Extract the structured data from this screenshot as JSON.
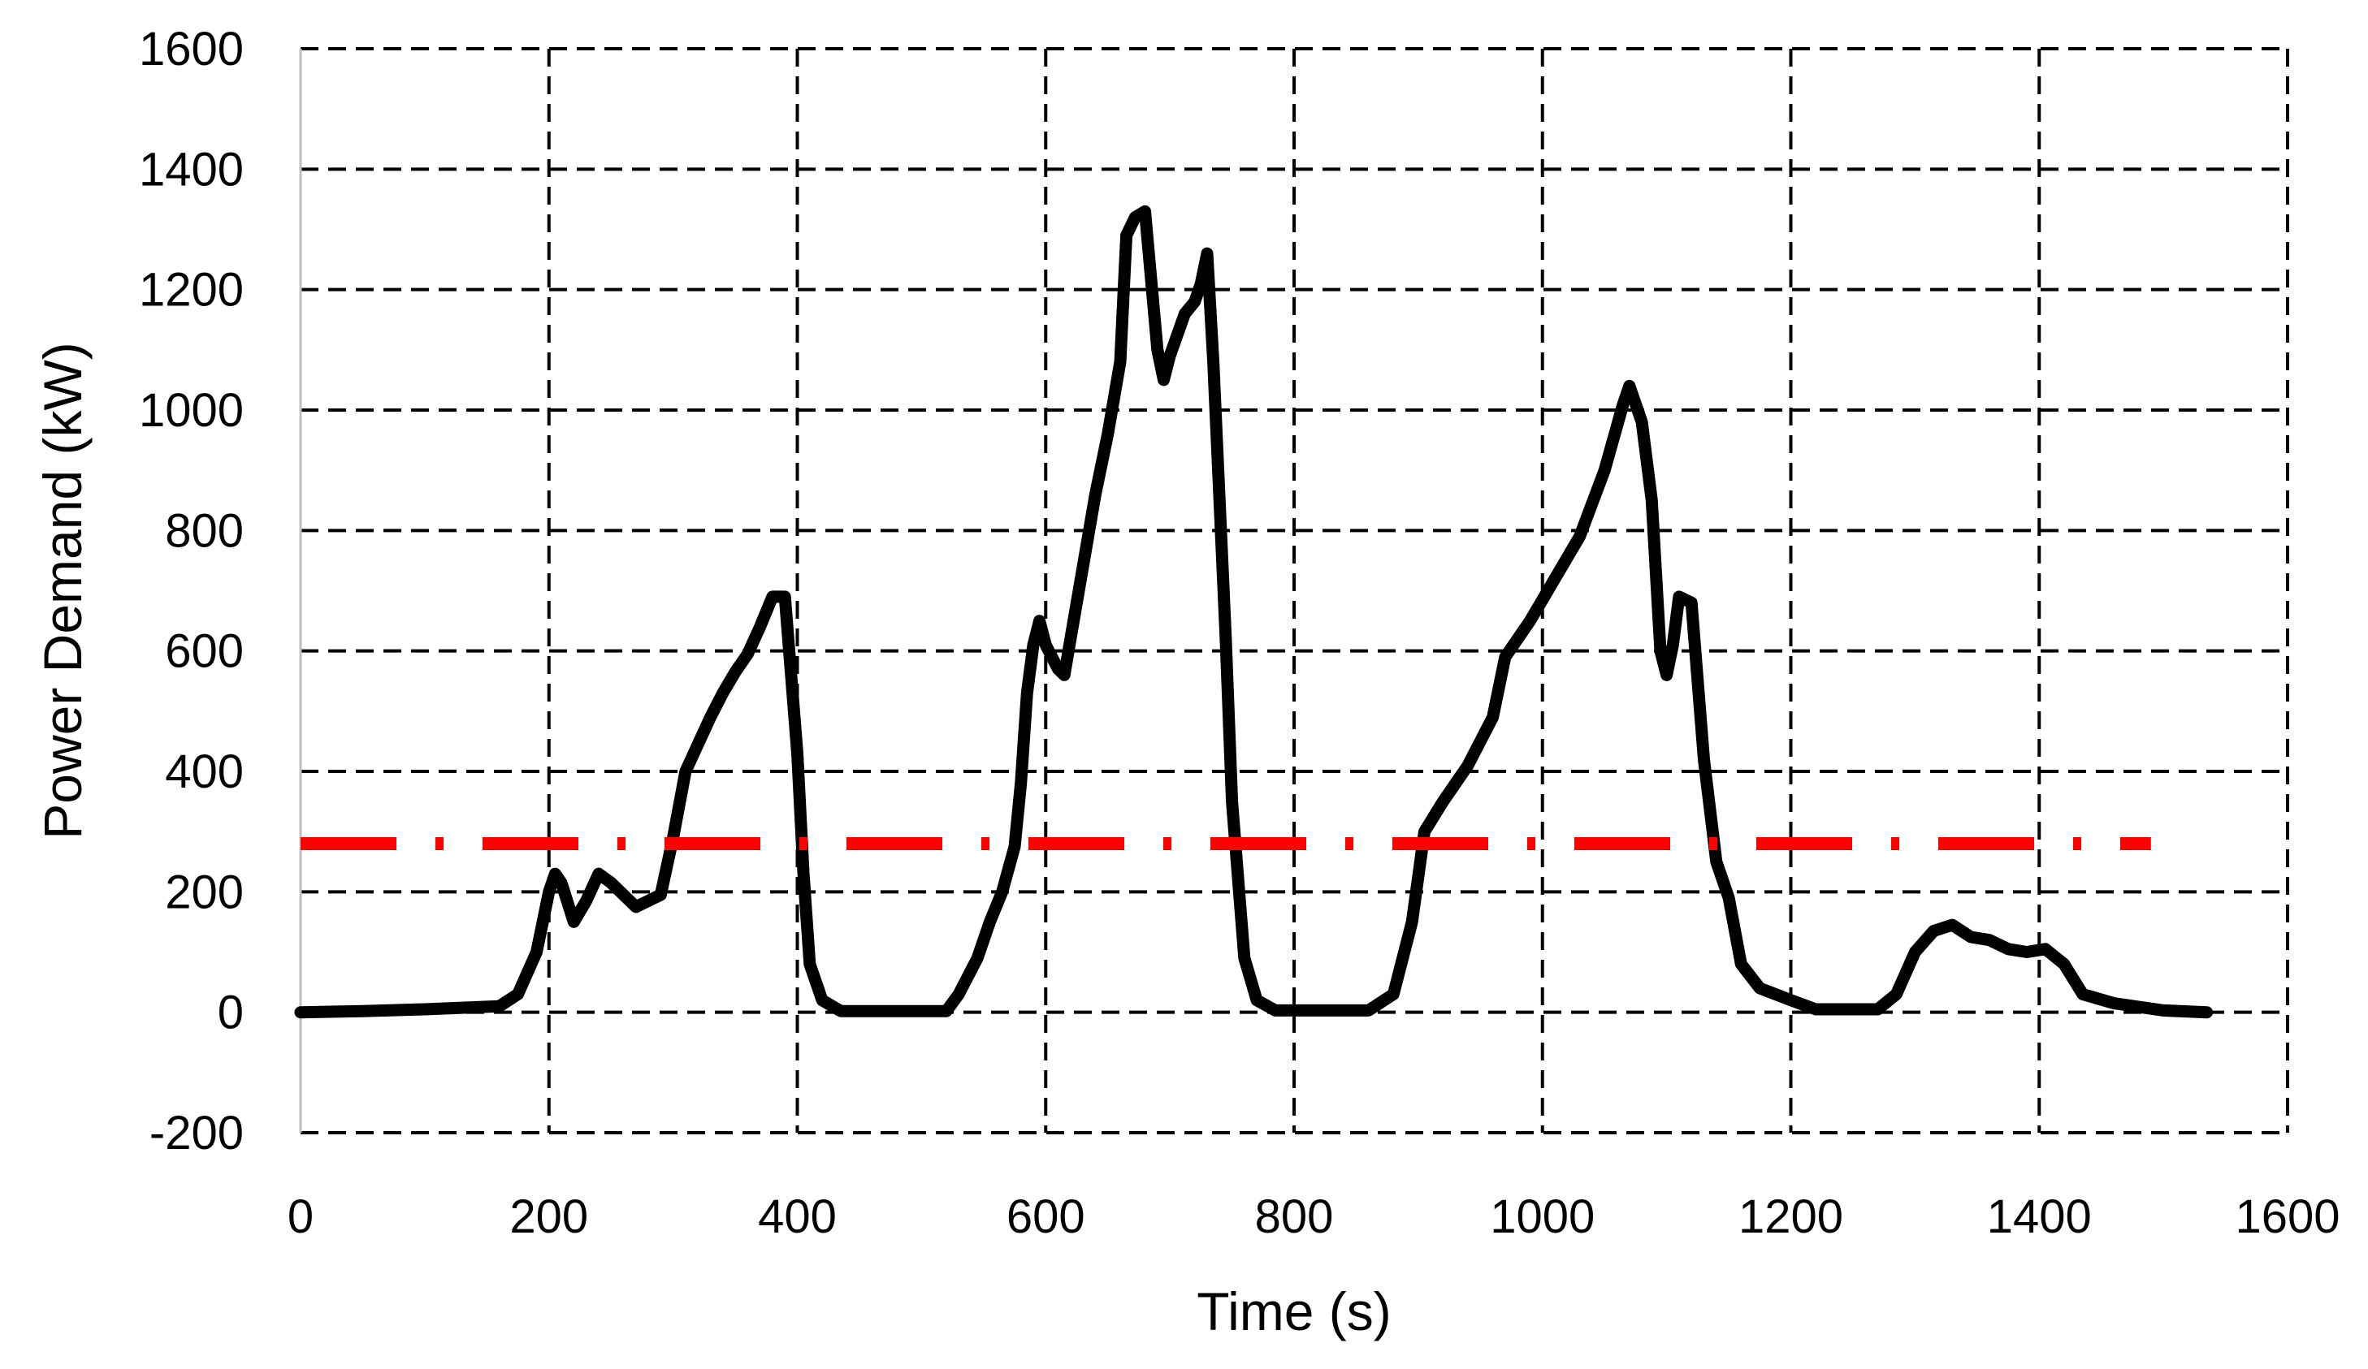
{
  "chart_data": {
    "type": "line",
    "title": "",
    "xlabel": "Time (s)",
    "ylabel": "Power Demand (kW)",
    "xlim": [
      0,
      1600
    ],
    "ylim": [
      -200,
      1600
    ],
    "x_ticks": [
      0,
      200,
      400,
      600,
      800,
      1000,
      1200,
      1400,
      1600
    ],
    "y_ticks": [
      -200,
      0,
      200,
      400,
      600,
      800,
      1000,
      1200,
      1400,
      1600
    ],
    "x_tick_labels": [
      "0",
      "200",
      "400",
      "600",
      "800",
      "1000",
      "1200",
      "1400",
      "1600"
    ],
    "y_tick_labels": [
      "-200",
      "0",
      "200",
      "400",
      "600",
      "800",
      "1000",
      "1200",
      "1400",
      "1600"
    ],
    "grid": true,
    "legend": "none",
    "series": [
      {
        "color": "#000000",
        "style": "solid",
        "points": [
          [
            0,
            0
          ],
          [
            50,
            2
          ],
          [
            100,
            5
          ],
          [
            160,
            10
          ],
          [
            175,
            30
          ],
          [
            190,
            100
          ],
          [
            200,
            200
          ],
          [
            205,
            230
          ],
          [
            210,
            215
          ],
          [
            220,
            150
          ],
          [
            230,
            185
          ],
          [
            240,
            230
          ],
          [
            250,
            215
          ],
          [
            260,
            195
          ],
          [
            270,
            175
          ],
          [
            280,
            185
          ],
          [
            290,
            195
          ],
          [
            300,
            290
          ],
          [
            310,
            400
          ],
          [
            320,
            445
          ],
          [
            330,
            490
          ],
          [
            340,
            530
          ],
          [
            350,
            565
          ],
          [
            360,
            595
          ],
          [
            370,
            640
          ],
          [
            380,
            690
          ],
          [
            390,
            690
          ],
          [
            400,
            430
          ],
          [
            405,
            230
          ],
          [
            410,
            80
          ],
          [
            420,
            20
          ],
          [
            435,
            2
          ],
          [
            520,
            2
          ],
          [
            530,
            30
          ],
          [
            545,
            90
          ],
          [
            555,
            150
          ],
          [
            565,
            200
          ],
          [
            575,
            275
          ],
          [
            580,
            380
          ],
          [
            585,
            530
          ],
          [
            590,
            610
          ],
          [
            595,
            650
          ],
          [
            600,
            610
          ],
          [
            610,
            570
          ],
          [
            615,
            560
          ],
          [
            620,
            620
          ],
          [
            630,
            740
          ],
          [
            640,
            860
          ],
          [
            650,
            960
          ],
          [
            660,
            1080
          ],
          [
            665,
            1290
          ],
          [
            672,
            1320
          ],
          [
            680,
            1330
          ],
          [
            690,
            1100
          ],
          [
            695,
            1050
          ],
          [
            700,
            1090
          ],
          [
            712,
            1160
          ],
          [
            720,
            1180
          ],
          [
            725,
            1210
          ],
          [
            730,
            1260
          ],
          [
            735,
            1080
          ],
          [
            745,
            620
          ],
          [
            750,
            350
          ],
          [
            760,
            90
          ],
          [
            770,
            20
          ],
          [
            785,
            3
          ],
          [
            860,
            3
          ],
          [
            880,
            30
          ],
          [
            895,
            150
          ],
          [
            905,
            300
          ],
          [
            920,
            350
          ],
          [
            940,
            410
          ],
          [
            960,
            490
          ],
          [
            970,
            590
          ],
          [
            990,
            650
          ],
          [
            1010,
            720
          ],
          [
            1030,
            790
          ],
          [
            1050,
            900
          ],
          [
            1065,
            1010
          ],
          [
            1070,
            1040
          ],
          [
            1080,
            980
          ],
          [
            1088,
            850
          ],
          [
            1095,
            600
          ],
          [
            1100,
            560
          ],
          [
            1105,
            610
          ],
          [
            1110,
            690
          ],
          [
            1120,
            680
          ],
          [
            1130,
            420
          ],
          [
            1140,
            250
          ],
          [
            1150,
            190
          ],
          [
            1160,
            80
          ],
          [
            1175,
            40
          ],
          [
            1200,
            20
          ],
          [
            1220,
            5
          ],
          [
            1270,
            5
          ],
          [
            1285,
            30
          ],
          [
            1300,
            100
          ],
          [
            1315,
            135
          ],
          [
            1330,
            145
          ],
          [
            1345,
            125
          ],
          [
            1360,
            120
          ],
          [
            1375,
            105
          ],
          [
            1390,
            100
          ],
          [
            1405,
            105
          ],
          [
            1420,
            80
          ],
          [
            1435,
            30
          ],
          [
            1460,
            15
          ],
          [
            1500,
            3
          ],
          [
            1535,
            0
          ]
        ]
      },
      {
        "color": "#ff0000",
        "style": "dash-dot",
        "points": [
          [
            0,
            280
          ],
          [
            1490,
            280
          ]
        ]
      }
    ]
  }
}
